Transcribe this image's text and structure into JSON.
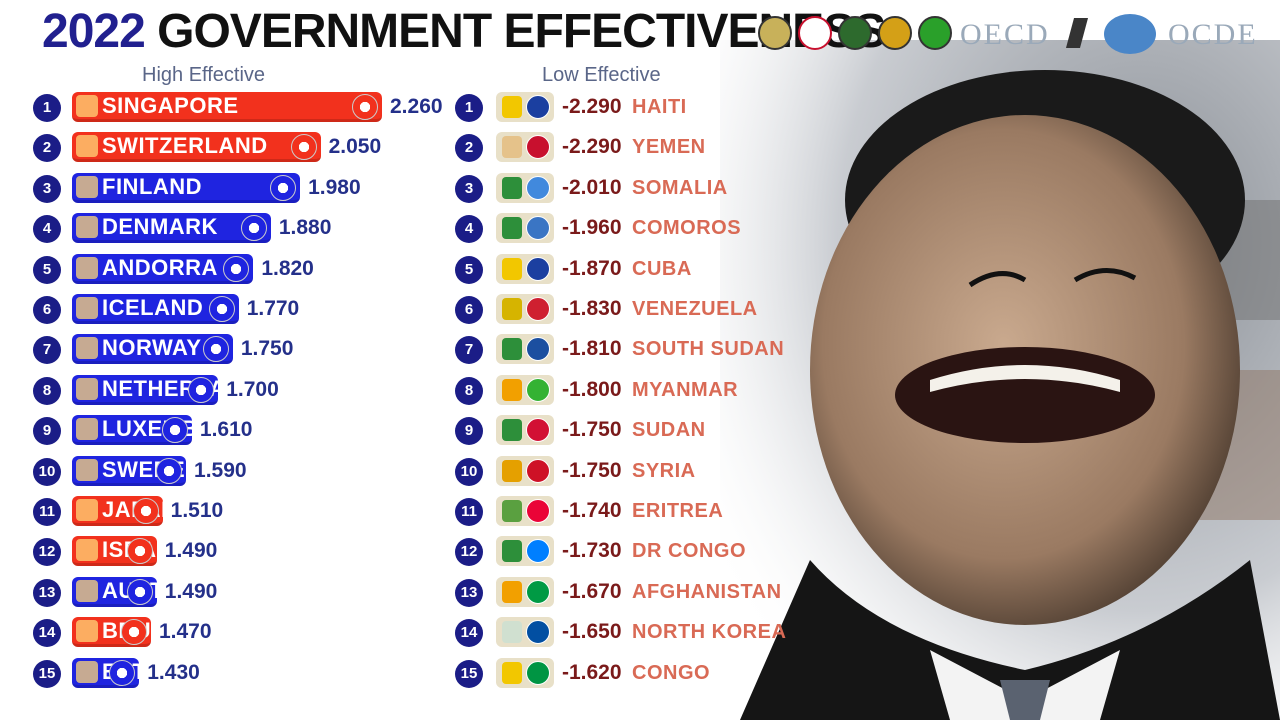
{
  "title": {
    "year": "2022",
    "text": "GOVERNMENT EFFECTIVENESS"
  },
  "logos": {
    "oecd": "OECD",
    "ocde": "OCDE"
  },
  "colors": {
    "red": "#f2311d",
    "blue": "#1f24e0",
    "rank": "#1b1d87",
    "value_high": "#24308a",
    "value_low": "#7a1a1a",
    "country_low": "#d96a55"
  },
  "chart_data": [
    {
      "type": "bar",
      "title": "High Effective",
      "categories": [
        "SINGAPORE",
        "SWITZERLAND",
        "FINLAND",
        "DENMARK",
        "ANDORRA",
        "ICELAND",
        "NORWAY",
        "NETHERLANDS",
        "LUXEMBOURG",
        "SWEDEN",
        "JAPAN",
        "ISRAEL",
        "AUSTRIA",
        "BRUNEI",
        "ESTONIA"
      ],
      "values": [
        2.26,
        2.05,
        1.98,
        1.88,
        1.82,
        1.77,
        1.75,
        1.7,
        1.61,
        1.59,
        1.51,
        1.49,
        1.49,
        1.47,
        1.43
      ],
      "labels": [
        "2.260",
        "2.050",
        "1.980",
        "1.880",
        "1.820",
        "1.770",
        "1.750",
        "1.700",
        "1.610",
        "1.590",
        "1.510",
        "1.490",
        "1.490",
        "1.470",
        "1.430"
      ],
      "ranks": [
        "1",
        "2",
        "3",
        "4",
        "5",
        "6",
        "7",
        "8",
        "9",
        "10",
        "11",
        "12",
        "13",
        "14",
        "15"
      ],
      "bar_colors": [
        "red",
        "red",
        "blue",
        "blue",
        "blue",
        "blue",
        "blue",
        "blue",
        "blue",
        "blue",
        "red",
        "red",
        "blue",
        "red",
        "blue"
      ]
    },
    {
      "type": "table",
      "title": "Low Effective",
      "categories": [
        "HAITI",
        "YEMEN",
        "SOMALIA",
        "COMOROS",
        "CUBA",
        "VENEZUELA",
        "SOUTH SUDAN",
        "MYANMAR",
        "SUDAN",
        "SYRIA",
        "ERITREA",
        "DR CONGO",
        "AFGHANISTAN",
        "NORTH KOREA",
        "CONGO"
      ],
      "values": [
        -2.29,
        -2.29,
        -2.01,
        -1.96,
        -1.87,
        -1.83,
        -1.81,
        -1.8,
        -1.75,
        -1.75,
        -1.74,
        -1.73,
        -1.67,
        -1.65,
        -1.62
      ],
      "labels": [
        "-2.290",
        "-2.290",
        "-2.010",
        "-1.960",
        "-1.870",
        "-1.830",
        "-1.810",
        "-1.800",
        "-1.750",
        "-1.750",
        "-1.740",
        "-1.730",
        "-1.670",
        "-1.650",
        "-1.620"
      ],
      "ranks": [
        "1",
        "2",
        "3",
        "4",
        "5",
        "6",
        "7",
        "8",
        "9",
        "10",
        "11",
        "12",
        "13",
        "14",
        "15"
      ],
      "icon_colors": [
        [
          "#f2c700",
          "#1b3fa0"
        ],
        [
          "#e5c28a",
          "#c8102e"
        ],
        [
          "#2d8f3a",
          "#4189dd"
        ],
        [
          "#2d8f3a",
          "#3a75c4"
        ],
        [
          "#f2c700",
          "#1b3fa0"
        ],
        [
          "#d6b400",
          "#cf2030"
        ],
        [
          "#2d8f3a",
          "#1b4fa0"
        ],
        [
          "#f2a000",
          "#34b233"
        ],
        [
          "#2d8f3a",
          "#d21034"
        ],
        [
          "#e5a000",
          "#ce1126"
        ],
        [
          "#5aa040",
          "#ea0437"
        ],
        [
          "#2d8f3a",
          "#007fff"
        ],
        [
          "#f2a000",
          "#009a44"
        ],
        [
          "#d0e0d0",
          "#024fa2"
        ],
        [
          "#f2c700",
          "#009543"
        ]
      ]
    }
  ]
}
